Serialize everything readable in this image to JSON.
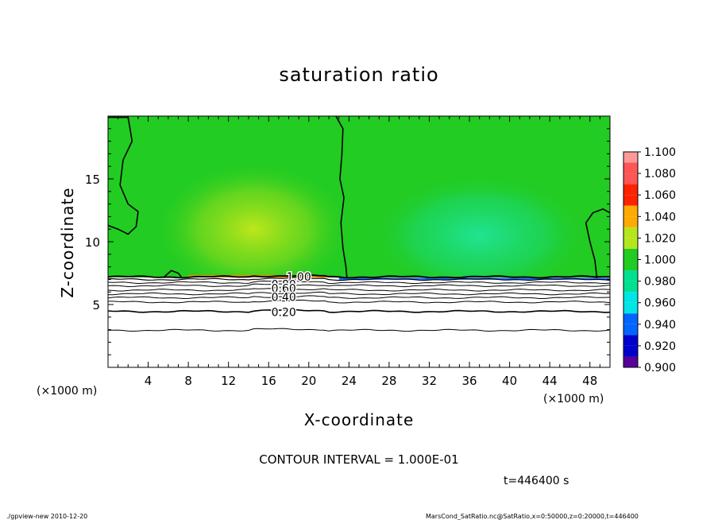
{
  "chart_data": {
    "type": "heatmap",
    "title": "saturation ratio",
    "xlabel": "X-coordinate",
    "ylabel": "Z-coordinate",
    "x_unit": "(×1000 m)",
    "y_unit": "(×1000 m)",
    "xlim": [
      0,
      50
    ],
    "ylim": [
      0,
      20
    ],
    "x_ticks": [
      4,
      8,
      12,
      16,
      20,
      24,
      28,
      32,
      36,
      40,
      44,
      48
    ],
    "y_ticks": [
      5,
      10,
      15
    ],
    "grid": false,
    "colorbar": {
      "placement": "right",
      "levels": [
        {
          "label": "1.100",
          "color": "#ff9999"
        },
        {
          "label": "1.080",
          "color": "#ff5555"
        },
        {
          "label": "1.060",
          "color": "#ff2200"
        },
        {
          "label": "1.040",
          "color": "#ffaa00"
        },
        {
          "label": "1.020",
          "color": "#b5e61d"
        },
        {
          "label": "1.000",
          "color": "#22cc22"
        },
        {
          "label": "0.980",
          "color": "#00e090"
        },
        {
          "label": "0.960",
          "color": "#00e5e5"
        },
        {
          "label": "0.940",
          "color": "#0066ff"
        },
        {
          "label": "0.920",
          "color": "#0000cc"
        },
        {
          "label": "0.900",
          "color": "#550099"
        }
      ]
    },
    "contour_labels": [
      {
        "text": "1.00",
        "x": 19,
        "z": 7.2
      },
      {
        "text": "0.80",
        "x": 17.5,
        "z": 6.6
      },
      {
        "text": "0.60",
        "x": 17.5,
        "z": 6.3
      },
      {
        "text": "0.40",
        "x": 17.5,
        "z": 5.6
      },
      {
        "text": "0.20",
        "x": 17.5,
        "z": 4.4
      }
    ],
    "contour_interval": "CONTOUR INTERVAL = 1.000E-01",
    "time_label": "t=446400 s"
  },
  "footer": {
    "left": "./gpview-new  2010-12-20",
    "right": "MarsCond_SatRatio.nc@SatRatio,x=0:50000,z=0:20000,t=446400"
  }
}
